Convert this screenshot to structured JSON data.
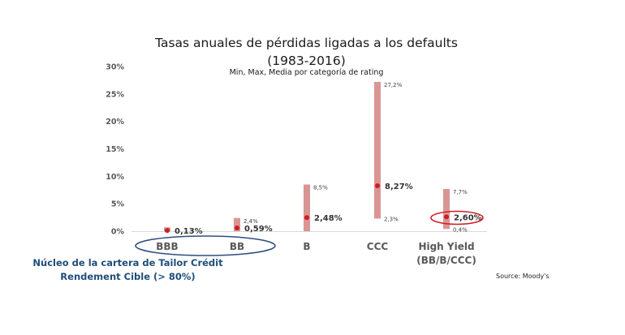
{
  "chart_data": {
    "type": "bar",
    "title": "Tasas anuales de pérdidas ligadas a los defaults (1983-2016)",
    "subtitle": "Min, Max, Media por categoría de rating",
    "categories": [
      "BBB",
      "BB",
      "B",
      "CCC",
      "High Yield\n(BB/B/CCC)"
    ],
    "y_ticks": [
      "30%",
      "25%",
      "20%",
      "15%",
      "10%",
      "5%",
      "0%"
    ],
    "ylim": [
      0,
      30
    ],
    "min": [
      0,
      0,
      0,
      2.3,
      0.4
    ],
    "max": [
      0.7,
      2.4,
      8.5,
      27.2,
      7.7
    ],
    "mean": [
      0.13,
      0.59,
      2.48,
      8.27,
      2.6
    ],
    "mean_labels": [
      "0,13%",
      "0,59%",
      "2,48%",
      "8,27%",
      "2,60%"
    ],
    "max_labels": [
      "",
      "2,4%",
      "8,5%",
      "27,2%",
      "7,7%"
    ],
    "min_labels": [
      "",
      "",
      "",
      "2,3%",
      "0,4%"
    ],
    "note": "Núcleo de la cartera de Tailor Crédit Rendement Cible (> 80%)",
    "source": "Source: Moody's",
    "colors": {
      "bar": "#d99594",
      "mean_dot": "#d01c24",
      "ellipse_blue": "#2e4e7e",
      "ellipse_red": "#d01c24",
      "note_text": "#1f4e79"
    }
  }
}
